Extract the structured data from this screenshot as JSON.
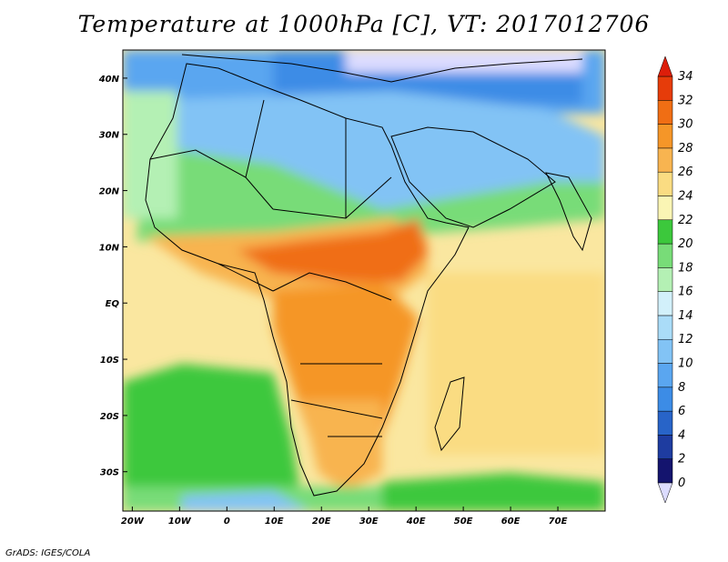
{
  "title": "Temperature at 1000hPa [C], VT: 2017012706",
  "footer": "GrADS: IGES/COLA",
  "map": {
    "lon_range": [
      -22,
      80
    ],
    "lat_range": [
      -37,
      45
    ],
    "x_ticks": [
      "20W",
      "10W",
      "0",
      "10E",
      "20E",
      "30E",
      "40E",
      "50E",
      "60E",
      "70E"
    ],
    "y_ticks": [
      "40N",
      "30N",
      "20N",
      "10N",
      "EQ",
      "10S",
      "20S",
      "30S"
    ]
  },
  "colorbar": {
    "levels": [
      "0",
      "2",
      "4",
      "6",
      "8",
      "10",
      "12",
      "14",
      "16",
      "18",
      "20",
      "22",
      "24",
      "26",
      "28",
      "30",
      "32",
      "34"
    ],
    "colors": [
      "#14146e",
      "#1e3ca0",
      "#2864c8",
      "#3c8ce6",
      "#5aa6f0",
      "#82c3f5",
      "#aadcf8",
      "#d2f0fa",
      "#b4f0b4",
      "#78dc78",
      "#3cc83c",
      "#faf5b4",
      "#fadc82",
      "#f8b450",
      "#f59628",
      "#f06e14",
      "#e63c0a"
    ],
    "under_color": "#dcdcff",
    "over_color": "#dc1e0a"
  }
}
